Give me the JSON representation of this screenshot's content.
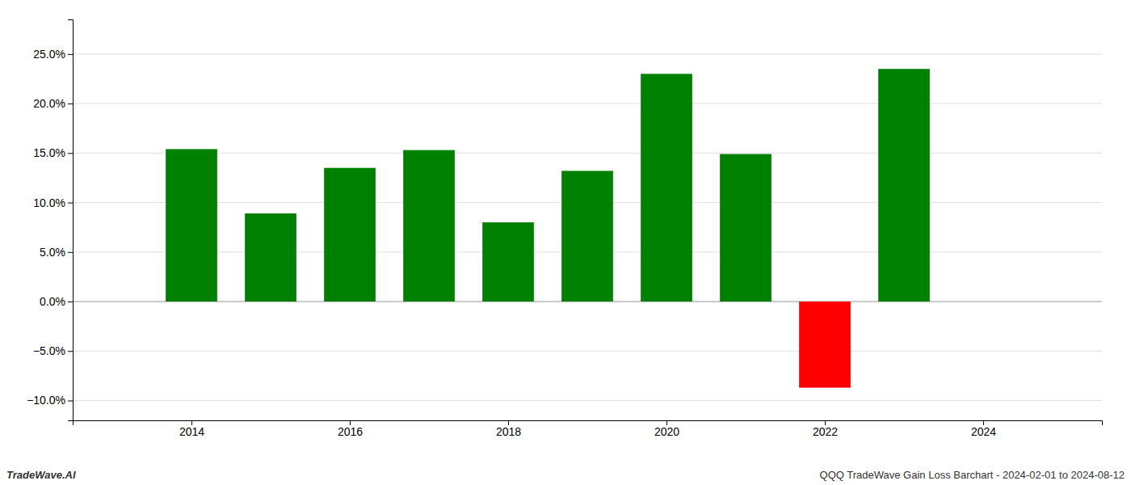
{
  "chart_data": {
    "type": "bar",
    "x": [
      2014,
      2015,
      2016,
      2017,
      2018,
      2019,
      2020,
      2021,
      2022,
      2023
    ],
    "values": [
      0.154,
      0.089,
      0.135,
      0.153,
      0.08,
      0.132,
      0.23,
      0.149,
      -0.087,
      0.235
    ],
    "colors": [
      "#008000",
      "#008000",
      "#008000",
      "#008000",
      "#008000",
      "#008000",
      "#008000",
      "#008000",
      "#ff0000",
      "#008000"
    ],
    "xlim": [
      2012.5,
      2025.5
    ],
    "xticks": [
      2014,
      2016,
      2018,
      2020,
      2022,
      2024
    ],
    "ylim": [
      -0.12,
      0.285
    ],
    "yticks": [
      {
        "value": -0.1,
        "label": "−10.0%"
      },
      {
        "value": -0.05,
        "label": "−5.0%"
      },
      {
        "value": 0,
        "label": "0.0%"
      },
      {
        "value": 0.05,
        "label": "5.0%"
      },
      {
        "value": 0.1,
        "label": "10.0%"
      },
      {
        "value": 0.15,
        "label": "15.0%"
      },
      {
        "value": 0.2,
        "label": "20.0%"
      },
      {
        "value": 0.25,
        "label": "25.0%"
      }
    ],
    "grid": true,
    "annotations": [
      "TradeWave.AI",
      "QQQ TradeWave Gain Loss Barchart - 2024-02-01 to 2024-08-12"
    ]
  }
}
